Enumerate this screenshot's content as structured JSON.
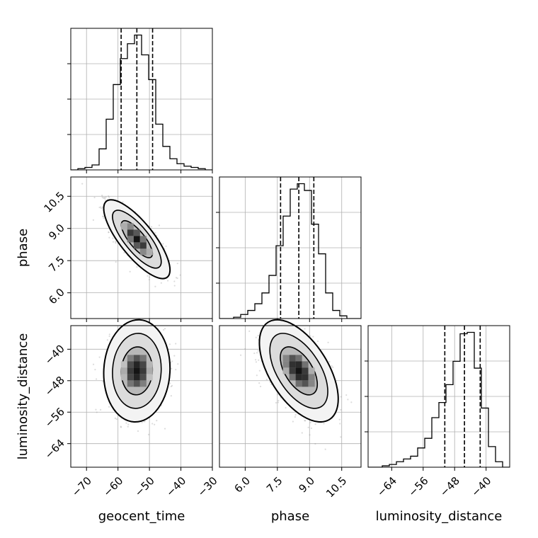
{
  "chart_data": {
    "type": "corner",
    "parameters": [
      {
        "key": "geocent_time",
        "label": "geocent_time",
        "range": [
          -75,
          -30
        ],
        "ticks": [
          -70,
          -60,
          -50,
          -40,
          -30
        ],
        "tick_labels": [
          "−70",
          "−60",
          "−50",
          "−40",
          "−30"
        ]
      },
      {
        "key": "phase",
        "label": "phase",
        "range": [
          4.8,
          11.4
        ],
        "ticks": [
          6.0,
          7.5,
          9.0,
          10.5
        ],
        "tick_labels": [
          "6.0",
          "7.5",
          "9.0",
          "10.5"
        ]
      },
      {
        "key": "luminosity_distance",
        "label": "luminosity_distance",
        "range": [
          -70,
          -34
        ],
        "ticks": [
          -64,
          -56,
          -48,
          -40
        ],
        "tick_labels": [
          "−64",
          "−56",
          "−48",
          "−40"
        ]
      }
    ],
    "histograms": [
      {
        "parameter": "geocent_time",
        "bin_edges": [
          -75,
          -72.75,
          -70.5,
          -68.25,
          -66,
          -63.75,
          -61.5,
          -59.25,
          -57,
          -54.75,
          -52.5,
          -50.25,
          -48,
          -45.75,
          -43.5,
          -41.25,
          -39,
          -36.75,
          -34.5,
          -32.25,
          -30
        ],
        "counts": [
          0,
          1,
          2,
          4,
          17,
          41,
          69,
          90,
          102,
          109,
          93,
          73,
          37,
          19,
          9,
          5,
          3,
          2,
          1,
          0
        ],
        "quantiles": [
          -59.0,
          -54.0,
          -49.0
        ]
      },
      {
        "parameter": "phase",
        "bin_edges": [
          4.8,
          5.13,
          5.46,
          5.79,
          6.12,
          6.45,
          6.78,
          7.11,
          7.44,
          7.77,
          8.1,
          8.43,
          8.76,
          9.09,
          9.42,
          9.75,
          10.08,
          10.41,
          10.74,
          11.07,
          11.4
        ],
        "counts": [
          0,
          0,
          1,
          3,
          6,
          11,
          19,
          32,
          54,
          76,
          96,
          100,
          95,
          70,
          48,
          19,
          6,
          2,
          0,
          0
        ],
        "quantiles": [
          7.65,
          8.5,
          9.2
        ]
      },
      {
        "parameter": "luminosity_distance",
        "bin_edges": [
          -70,
          -68.2,
          -66.4,
          -64.6,
          -62.8,
          -61,
          -59.2,
          -57.4,
          -55.6,
          -53.8,
          -52,
          -50.2,
          -48.4,
          -46.6,
          -44.8,
          -43,
          -41.2,
          -39.4,
          -37.6,
          -35.8,
          -34
        ],
        "counts": [
          0,
          0,
          1,
          2,
          4,
          6,
          8,
          14,
          21,
          36,
          47,
          60,
          77,
          97,
          98,
          72,
          43,
          15,
          4,
          0
        ],
        "quantiles": [
          -50.5,
          -45.5,
          -41.5
        ]
      }
    ],
    "pairs": [
      {
        "x": "geocent_time",
        "y": "phase",
        "center": [
          -54,
          8.5
        ],
        "correlation": "negative"
      },
      {
        "x": "geocent_time",
        "y": "luminosity_distance",
        "center": [
          -54,
          -45.5
        ],
        "correlation": "none"
      },
      {
        "x": "phase",
        "y": "luminosity_distance",
        "center": [
          8.5,
          -45.5
        ],
        "correlation": "negative"
      }
    ],
    "grid": true,
    "colors": {
      "line": "#000000",
      "grid": "#b0b0b0",
      "points": "#9a9a9a"
    }
  }
}
